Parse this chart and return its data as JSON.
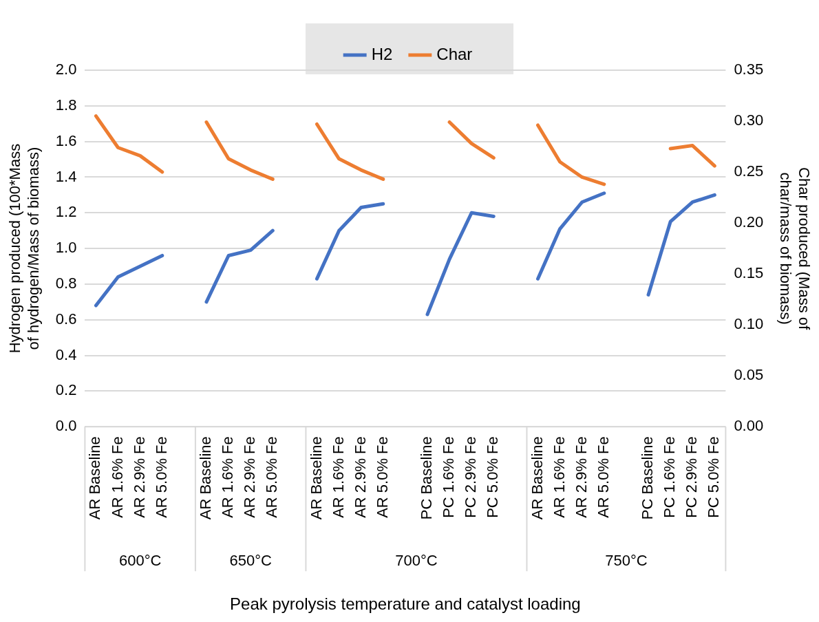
{
  "chart_data": {
    "type": "line",
    "categories": [
      "AR Baseline",
      "AR 1.6% Fe",
      "AR 2.9% Fe",
      "AR 5.0% Fe",
      null,
      "AR Baseline",
      "AR 1.6% Fe",
      "AR 2.9% Fe",
      "AR 5.0% Fe",
      null,
      "AR Baseline",
      "AR 1.6% Fe",
      "AR 2.9% Fe",
      "AR 5.0% Fe",
      null,
      "PC Baseline",
      "PC 1.6% Fe",
      "PC 2.9% Fe",
      "PC 5.0% Fe",
      null,
      "AR Baseline",
      "AR 1.6% Fe",
      "AR 2.9% Fe",
      "AR 5.0% Fe",
      null,
      "PC Baseline",
      "PC 1.6% Fe",
      "PC 2.9% Fe",
      "PC 5.0% Fe"
    ],
    "series": [
      {
        "name": "H2",
        "color": "#4472c4",
        "values": [
          0.68,
          0.84,
          0.9,
          0.96,
          null,
          0.7,
          0.96,
          0.99,
          1.1,
          null,
          0.83,
          1.1,
          1.23,
          1.25,
          null,
          0.63,
          0.94,
          1.2,
          1.18,
          null,
          0.83,
          1.11,
          1.26,
          1.31,
          null,
          0.74,
          1.15,
          1.26,
          1.3
        ]
      },
      {
        "name": "Char",
        "color": "#ed7d31",
        "axis": "y2",
        "values": [
          0.305,
          0.274,
          0.266,
          0.25,
          null,
          0.299,
          0.263,
          0.252,
          0.243,
          null,
          0.297,
          0.263,
          0.252,
          0.243,
          null,
          null,
          0.299,
          0.278,
          0.264,
          null,
          0.296,
          0.26,
          0.245,
          0.238,
          null,
          null,
          0.273,
          0.276,
          0.256
        ]
      }
    ],
    "xlabel": "Peak pyrolysis temperature and catalyst loading",
    "ylabel": "Hydrogen produced (100*Mass of hydrogen/Mass of biomass)",
    "y2label": "Char produced (Mass of char/mass of biomass)",
    "ylim": [
      0,
      2
    ],
    "yticks": [
      {
        "value": 0,
        "label": "0.0"
      },
      0.2,
      0.4,
      0.6,
      0.8,
      {
        "value": 1,
        "label": "1.0"
      },
      1.2,
      1.4,
      1.6,
      1.8,
      {
        "value": 2,
        "label": "2.0"
      }
    ],
    "y2lim": [
      0,
      0.35
    ],
    "y2ticks": [
      {
        "value": 0,
        "label": "0.00"
      },
      0.05,
      {
        "value": 0.1,
        "label": "0.10"
      },
      0.15,
      {
        "value": 0.2,
        "label": "0.20"
      },
      0.25,
      {
        "value": 0.3,
        "label": "0.30"
      },
      0.35
    ],
    "annotations": [
      "600°C",
      "650°C",
      "700°C",
      "750°C"
    ],
    "grid": "y",
    "legend": "top"
  }
}
